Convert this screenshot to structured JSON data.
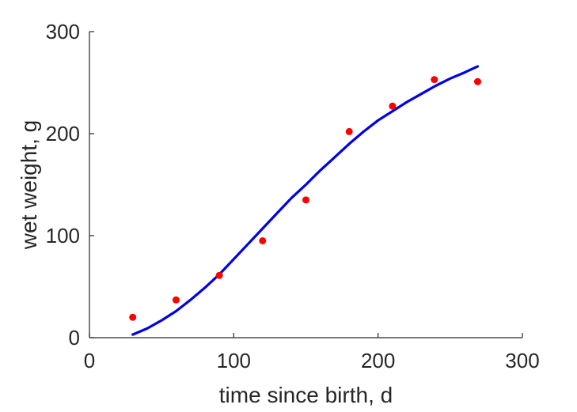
{
  "chart_data": {
    "type": "scatter",
    "xlabel": "time since birth, d",
    "ylabel": "wet weight, g",
    "xlim": [
      0,
      300
    ],
    "ylim": [
      0,
      300
    ],
    "xticks": [
      0,
      100,
      200,
      300
    ],
    "yticks": [
      0,
      100,
      200,
      300
    ],
    "xtick_labels": [
      "0",
      "100",
      "200",
      "300"
    ],
    "ytick_labels": [
      "0",
      "100",
      "200",
      "300"
    ],
    "grid": false,
    "series": [
      {
        "kind": "scatter",
        "color": "#ff0000",
        "x": [
          30,
          60,
          90,
          120,
          150,
          180,
          210,
          239,
          269
        ],
        "y": [
          20,
          37,
          61,
          95,
          135,
          202,
          227,
          253,
          251
        ]
      },
      {
        "kind": "line",
        "color": "#0000e6",
        "x": [
          30,
          40,
          50,
          60,
          70,
          80,
          90,
          100,
          110,
          120,
          130,
          140,
          150,
          160,
          170,
          180,
          190,
          200,
          210,
          220,
          230,
          240,
          250,
          260,
          269
        ],
        "y": [
          3,
          9,
          17,
          26,
          37,
          49,
          62,
          77,
          92,
          107,
          122,
          137,
          150,
          164,
          177,
          190,
          202,
          213,
          222,
          231,
          239,
          247,
          254,
          260,
          266
        ]
      }
    ]
  }
}
